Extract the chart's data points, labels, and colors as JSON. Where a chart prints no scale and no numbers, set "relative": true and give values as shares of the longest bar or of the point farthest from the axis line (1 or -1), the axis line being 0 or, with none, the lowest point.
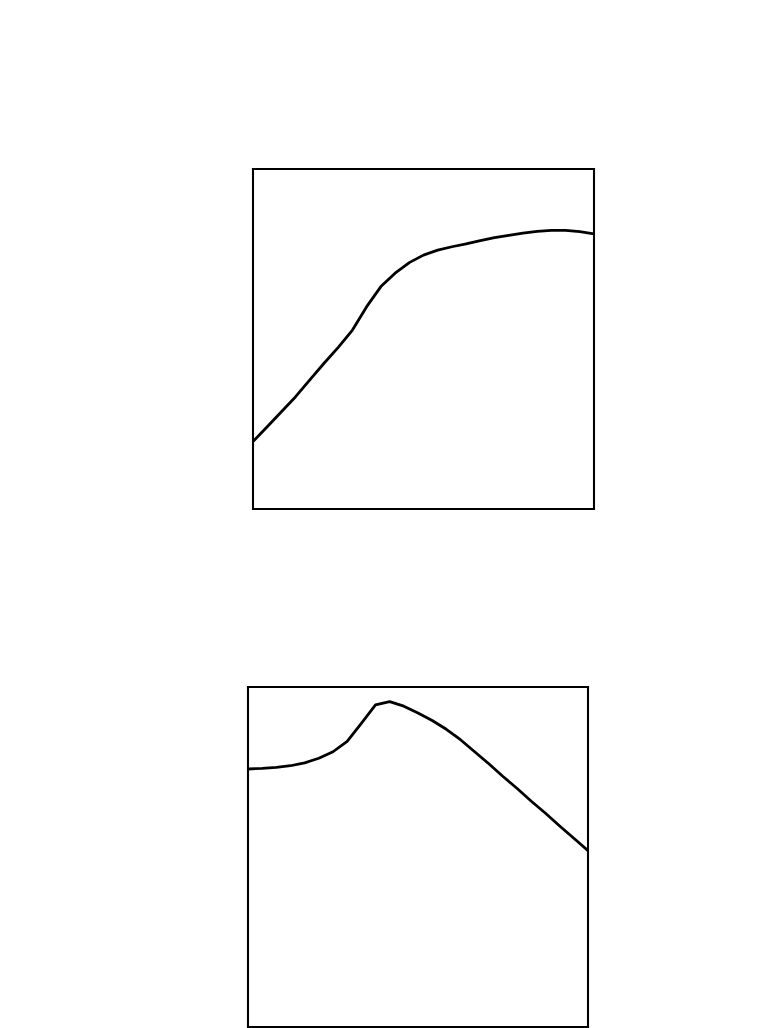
{
  "chart_data": [
    {
      "type": "line",
      "relative": true,
      "categories": [
        null,
        null,
        null,
        null,
        null,
        null,
        null,
        null,
        null,
        null,
        null,
        null,
        null,
        null,
        null,
        null,
        null,
        null,
        null,
        null,
        null,
        null,
        null,
        null,
        null
      ],
      "series": [
        {
          "color": "#000000",
          "values": [
            0.242,
            0.295,
            0.349,
            0.403,
            0.463,
            0.523,
            0.58,
            0.642,
            0.726,
            0.798,
            0.846,
            0.884,
            0.911,
            0.929,
            0.941,
            0.951,
            0.963,
            0.974,
            0.982,
            0.99,
            0.996,
            1,
            1,
            0.995,
            0.987
          ]
        }
      ]
    },
    {
      "type": "line",
      "relative": true,
      "categories": [
        null,
        null,
        null,
        null,
        null,
        null,
        null,
        null,
        null,
        null,
        null,
        null,
        null,
        null,
        null,
        null,
        null,
        null,
        null,
        null,
        null,
        null,
        null,
        null,
        null
      ],
      "series": [
        {
          "color": "#000000",
          "values": [
            0.793,
            0.795,
            0.798,
            0.803,
            0.812,
            0.826,
            0.846,
            0.878,
            0.933,
            0.99,
            1,
            0.986,
            0.965,
            0.942,
            0.915,
            0.883,
            0.846,
            0.809,
            0.77,
            0.733,
            0.694,
            0.657,
            0.618,
            0.58,
            0.542
          ]
        }
      ]
    }
  ]
}
